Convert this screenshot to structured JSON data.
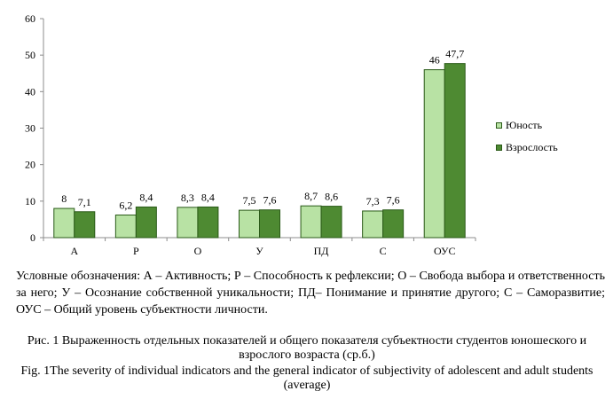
{
  "chart_data": {
    "type": "bar",
    "categories": [
      "А",
      "Р",
      "О",
      "У",
      "ПД",
      "С",
      "ОУС"
    ],
    "series": [
      {
        "name": "Юность",
        "color": "#b8e2a4",
        "values": [
          8,
          6.2,
          8.3,
          7.5,
          8.7,
          7.3,
          46
        ],
        "labels": [
          "8",
          "6,2",
          "8,3",
          "7,5",
          "8,7",
          "7,3",
          "46"
        ]
      },
      {
        "name": "Взрослость",
        "color": "#4e8a32",
        "values": [
          7.1,
          8.4,
          8.4,
          7.6,
          8.6,
          7.6,
          47.7
        ],
        "labels": [
          "7,1",
          "8,4",
          "8,4",
          "7,6",
          "8,6",
          "7,6",
          "47,7"
        ]
      }
    ],
    "ylim": [
      0,
      60
    ],
    "yticks": [
      0,
      10,
      20,
      30,
      40,
      50,
      60
    ],
    "grid": false,
    "legend": "right"
  },
  "notes": "Условные обозначения: А – Активность; Р – Способность к рефлексии; О – Свобода выбора и ответственность за него; У – Осознание собственной уникальности; ПД– Понимание и принятие другого; С – Саморазвитие; ОУС – Общий уровень субъектности личности.",
  "caption": {
    "ru": "Рис. 1 Выраженность отдельных показателей и общего показателя субъектности студентов юношеского и взрослого возраста (ср.б.)",
    "en": "Fig. 1The severity of individual indicators and the general indicator of subjectivity of adolescent and adult students (average)"
  }
}
